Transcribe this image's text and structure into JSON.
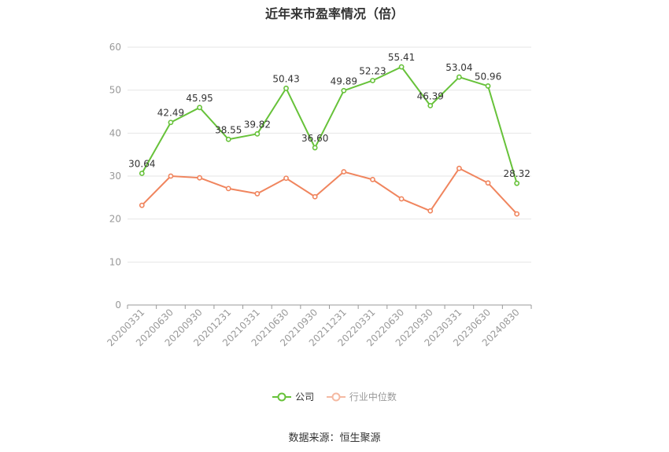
{
  "title": "近年来市盈率情况（倍）",
  "source": "数据来源：恒生聚源",
  "chart_data": {
    "type": "line",
    "title": "近年来市盈率情况（倍）",
    "categories": [
      "20200331",
      "20200630",
      "20200930",
      "20201231",
      "20210331",
      "20210630",
      "20210930",
      "20211231",
      "20220331",
      "20220630",
      "20220930",
      "20230331",
      "20230630",
      "20240830"
    ],
    "ylim": [
      0,
      60
    ],
    "yticks": [
      0,
      10,
      20,
      30,
      40,
      50,
      60
    ],
    "grid": true,
    "legend_position": "bottom",
    "series": [
      {
        "name": "公司",
        "color": "#67c23a",
        "show_labels": true,
        "values": [
          30.64,
          42.49,
          45.95,
          38.55,
          39.82,
          50.43,
          36.6,
          49.89,
          52.23,
          55.41,
          46.39,
          53.04,
          50.96,
          28.32
        ]
      },
      {
        "name": "行业中位数",
        "color": "#f0855e",
        "show_labels": false,
        "values": [
          23.2,
          30.0,
          29.6,
          27.1,
          25.9,
          29.5,
          25.2,
          31.0,
          29.2,
          24.7,
          21.9,
          31.8,
          28.4,
          21.2
        ]
      }
    ]
  }
}
